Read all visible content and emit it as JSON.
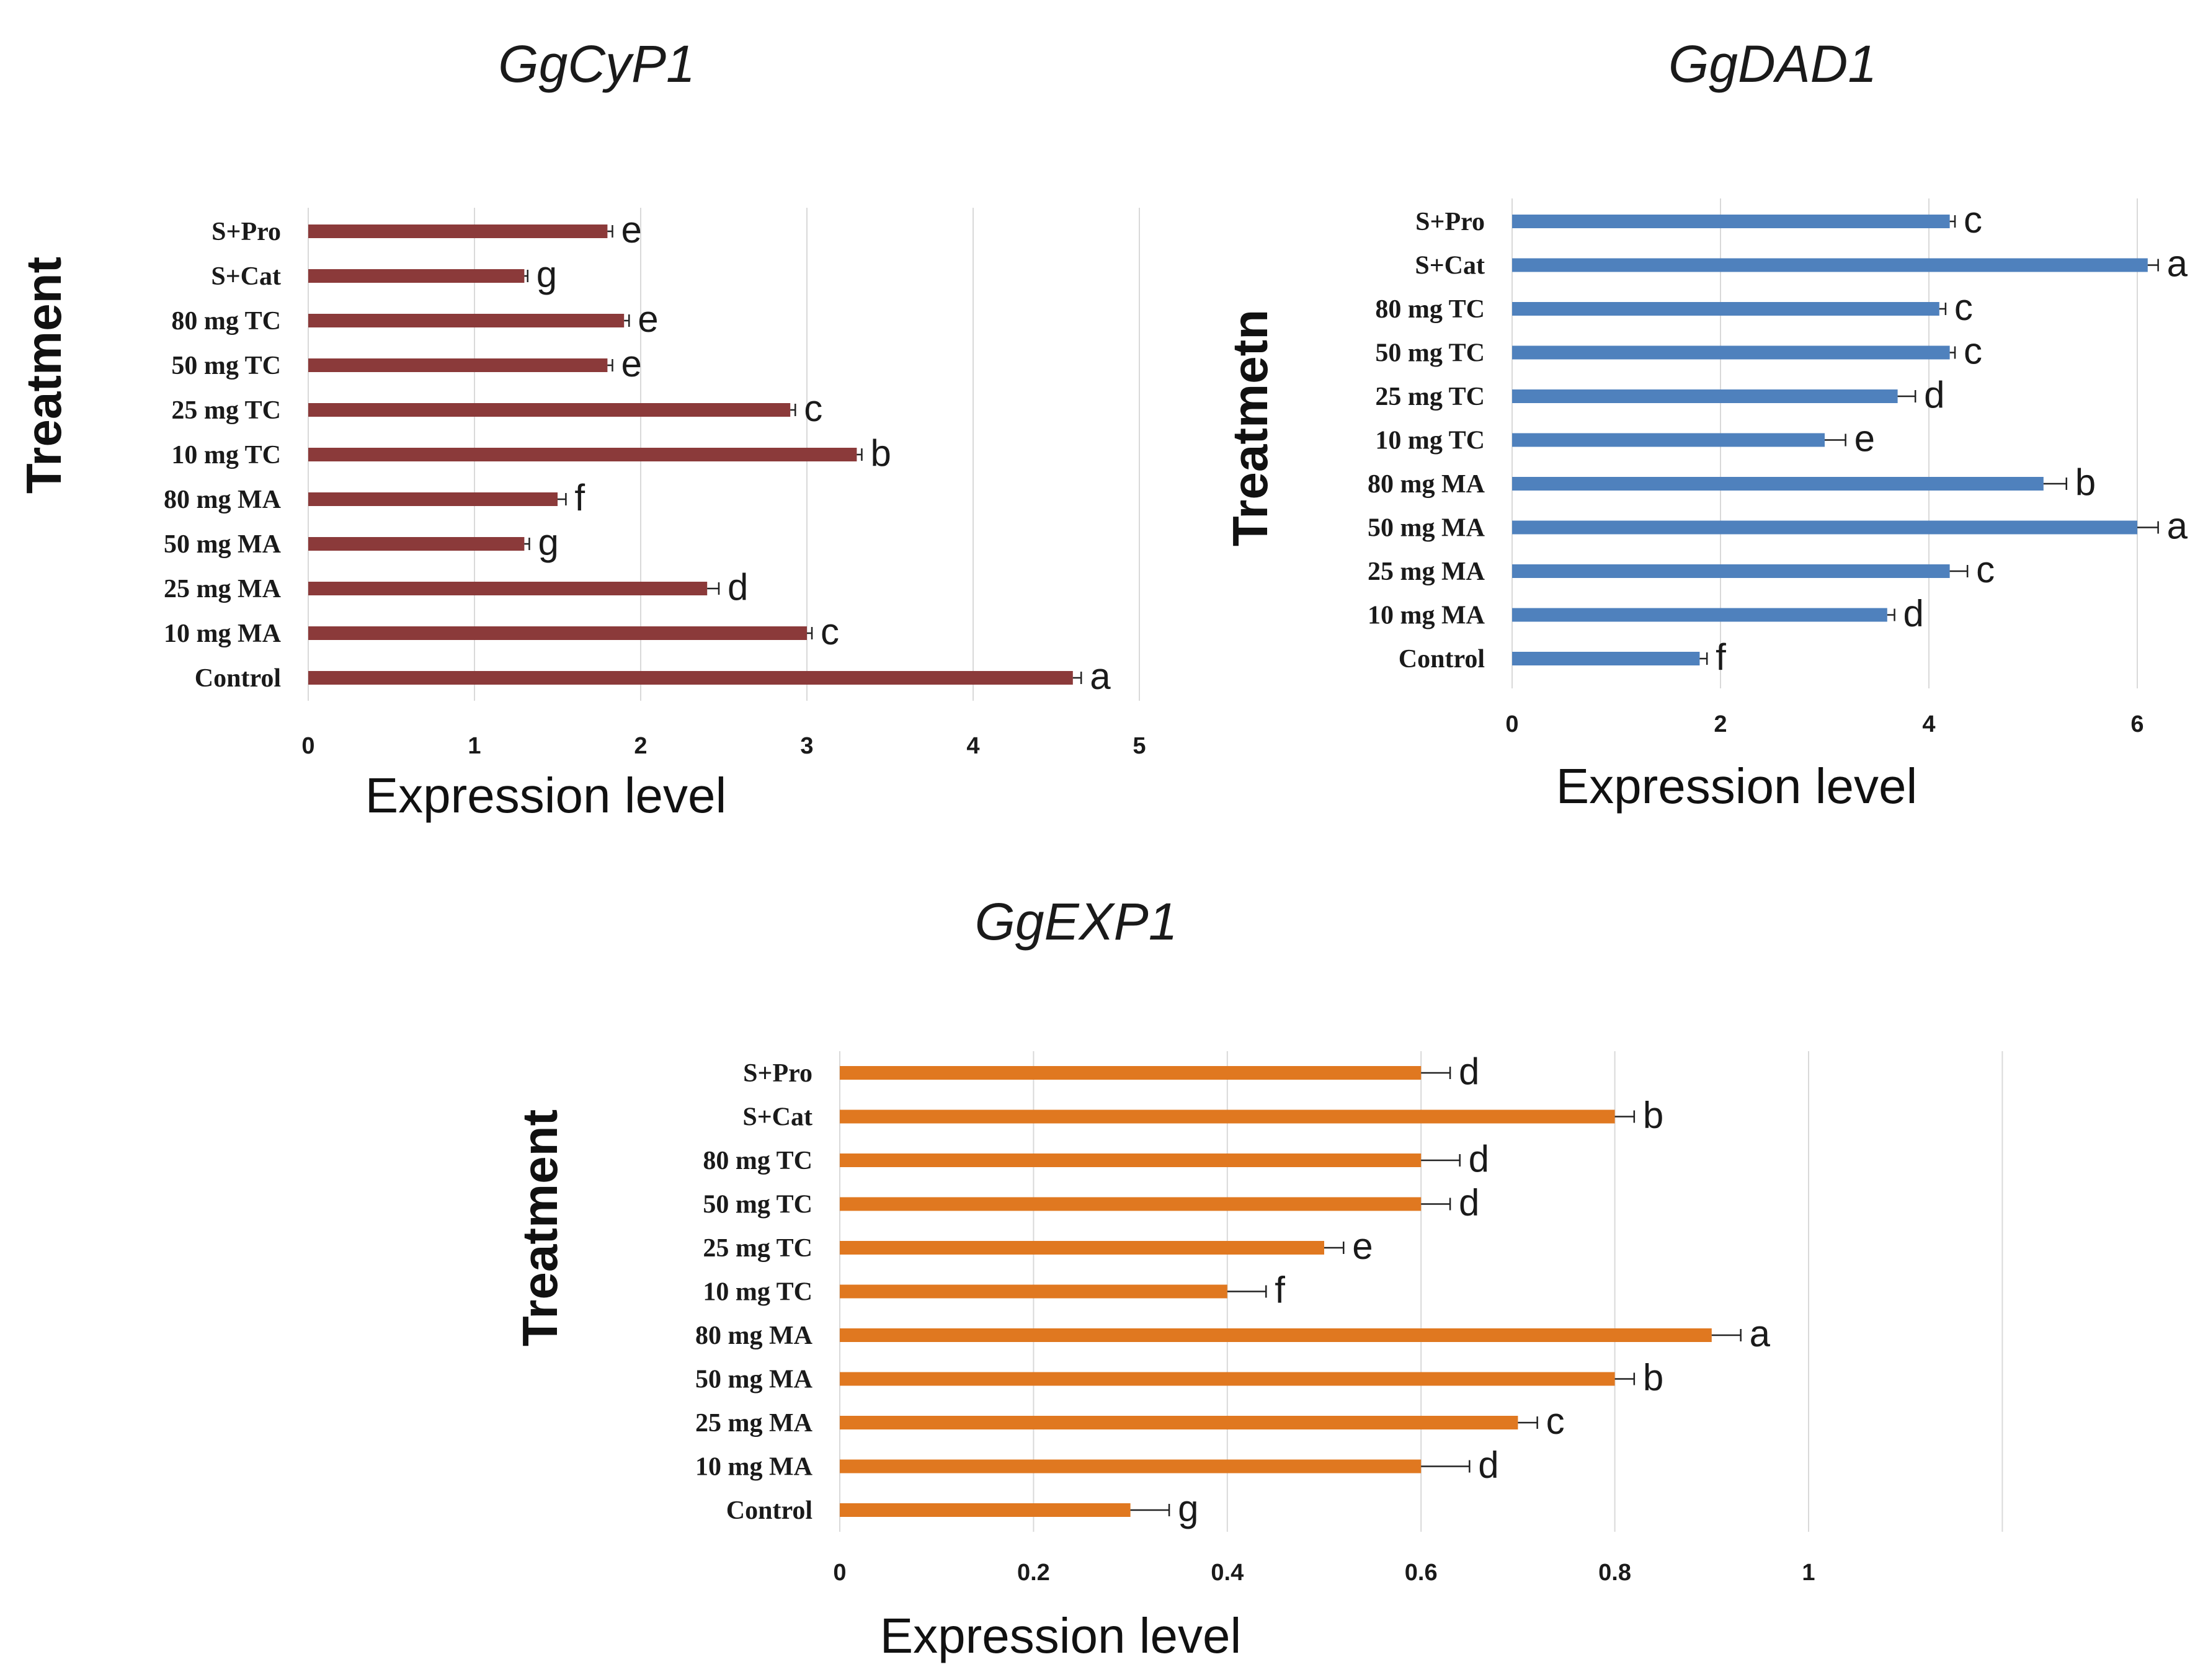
{
  "chart_data": [
    {
      "type": "bar",
      "orientation": "horizontal",
      "title": "GgCyP1",
      "xlabel": "Expression level",
      "ylabel": "Treatment",
      "xlim": [
        0,
        5
      ],
      "xticks": [
        "0",
        "1",
        "2",
        "3",
        "4",
        "5"
      ],
      "grid": true,
      "color": "#8B3A3A",
      "categories": [
        "S+Pro",
        "S+Cat",
        "80 mg TC",
        "50 mg TC",
        "25 mg TC",
        "10 mg TC",
        "80 mg MA",
        "50 mg MA",
        "25 mg MA",
        "10 mg MA",
        "Control"
      ],
      "values": [
        1.8,
        1.3,
        1.9,
        1.8,
        2.9,
        3.3,
        1.5,
        1.3,
        2.4,
        3.0,
        4.6
      ],
      "errors": [
        0.03,
        0.02,
        0.03,
        0.03,
        0.03,
        0.03,
        0.05,
        0.03,
        0.07,
        0.03,
        0.05
      ],
      "labels": [
        "e",
        "g",
        "e",
        "e",
        "c",
        "b",
        "f",
        "g",
        "d",
        "c",
        "a"
      ]
    },
    {
      "type": "bar",
      "orientation": "horizontal",
      "title": "GgDAD1",
      "xlabel": "Expression level",
      "ylabel": "Treatmetn",
      "xlim": [
        0,
        7
      ],
      "xticks": [
        "0",
        "2",
        "4",
        "6"
      ],
      "grid": true,
      "color": "#4F81BD",
      "categories": [
        "S+Pro",
        "S+Cat",
        "80 mg TC",
        "50 mg TC",
        "25 mg TC",
        "10 mg TC",
        "80 mg MA",
        "50 mg MA",
        "25 mg MA",
        "10 mg MA",
        "Control"
      ],
      "values": [
        4.2,
        6.1,
        4.1,
        4.2,
        3.7,
        3.0,
        5.1,
        6.0,
        4.2,
        3.6,
        1.8
      ],
      "errors": [
        0.05,
        0.1,
        0.06,
        0.05,
        0.17,
        0.2,
        0.22,
        0.2,
        0.17,
        0.07,
        0.07
      ],
      "labels": [
        "c",
        "a",
        "c",
        "c",
        "d",
        "e",
        "b",
        "a",
        "c",
        "d",
        "f"
      ]
    },
    {
      "type": "bar",
      "orientation": "horizontal",
      "title": "GgEXP1",
      "xlabel": "Expression level",
      "ylabel": "Treatment",
      "xlim": [
        0,
        1.2
      ],
      "xticks": [
        "0",
        "0.2",
        "0.4",
        "0.6",
        "0.8",
        "1"
      ],
      "grid": true,
      "color": "#E07820",
      "categories": [
        "S+Pro",
        "S+Cat",
        "80 mg TC",
        "50 mg TC",
        "25 mg TC",
        "10 mg TC",
        "80 mg MA",
        "50 mg MA",
        "25 mg MA",
        "10 mg MA",
        "Control"
      ],
      "values": [
        0.6,
        0.8,
        0.6,
        0.6,
        0.5,
        0.4,
        0.9,
        0.8,
        0.7,
        0.6,
        0.3
      ],
      "errors": [
        0.03,
        0.02,
        0.04,
        0.03,
        0.02,
        0.04,
        0.03,
        0.02,
        0.02,
        0.05,
        0.04
      ],
      "labels": [
        "d",
        "b",
        "d",
        "d",
        "e",
        "f",
        "a",
        "b",
        "c",
        "d",
        "g"
      ]
    }
  ]
}
